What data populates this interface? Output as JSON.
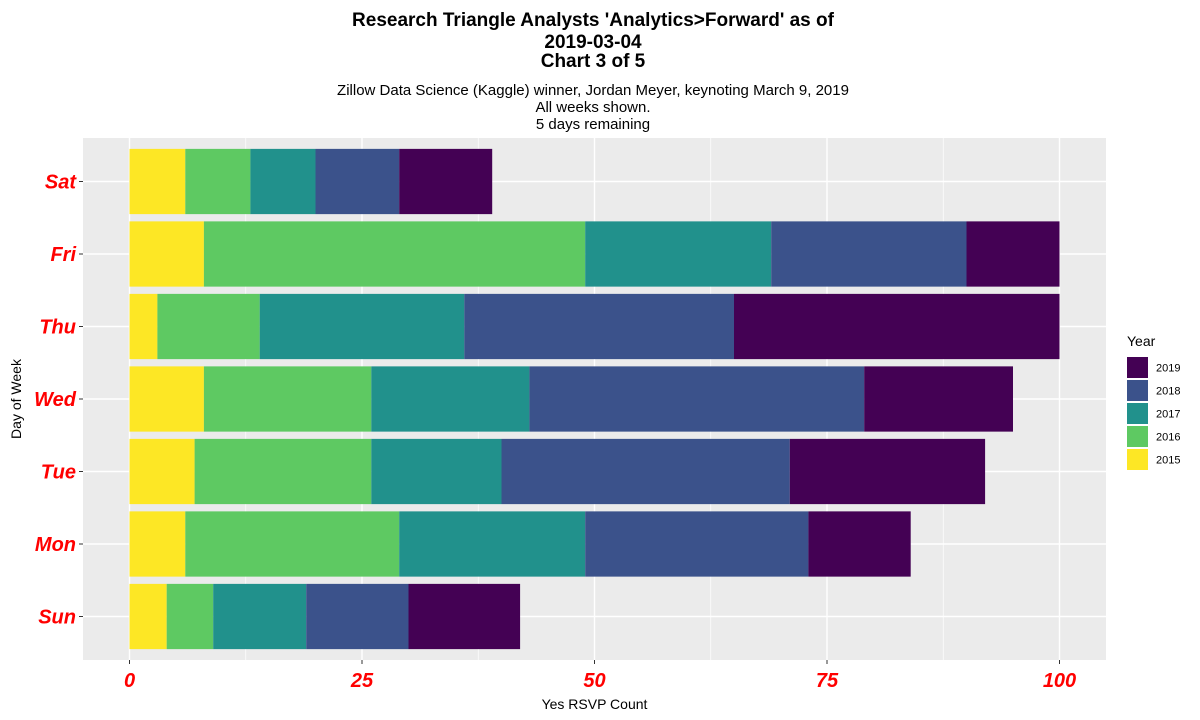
{
  "chart_data": {
    "type": "bar",
    "orientation": "horizontal",
    "stacked": true,
    "title_lines": [
      "Research Triangle Analysts 'Analytics>Forward' as of",
      "2019-03-04",
      "Chart 3 of 5"
    ],
    "subtitle_lines": [
      "Zillow Data Science (Kaggle) winner, Jordan Meyer, keynoting March 9, 2019",
      "All weeks shown.",
      "5 days remaining"
    ],
    "xlabel": "Yes RSVP Count",
    "ylabel": "Day of Week",
    "xlim": [
      -5,
      105
    ],
    "xticks": [
      0,
      25,
      50,
      75,
      100
    ],
    "xtick_labels": [
      "0",
      "25",
      "50",
      "75",
      "100"
    ],
    "categories": [
      "Sat",
      "Fri",
      "Thu",
      "Wed",
      "Tue",
      "Mon",
      "Sun"
    ],
    "tick_label_color": "#ff0000",
    "panel_background": "#ebebeb",
    "grid": true,
    "legend_title": "Year",
    "legend_position": "right",
    "series": [
      {
        "name": "2015",
        "color": "#fde725",
        "values": [
          6,
          8,
          3,
          8,
          7,
          6,
          4
        ]
      },
      {
        "name": "2016",
        "color": "#5ec962",
        "values": [
          7,
          41,
          11,
          18,
          19,
          23,
          5
        ]
      },
      {
        "name": "2017",
        "color": "#21918c",
        "values": [
          7,
          20,
          22,
          17,
          14,
          20,
          10
        ]
      },
      {
        "name": "2018",
        "color": "#3b528b",
        "values": [
          9,
          21,
          29,
          36,
          31,
          24,
          11
        ]
      },
      {
        "name": "2019",
        "color": "#440154",
        "values": [
          10,
          10,
          35,
          16,
          21,
          11,
          12
        ]
      }
    ],
    "legend_order": [
      "2019",
      "2018",
      "2017",
      "2016",
      "2015"
    ]
  }
}
